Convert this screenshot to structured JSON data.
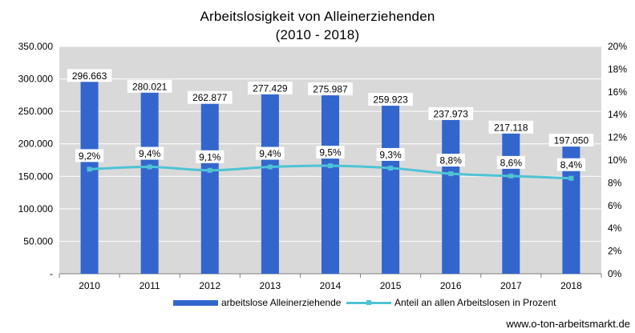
{
  "title_line1": "Arbeitslosigkeit von Alleinerziehenden",
  "title_line2": "(2010 - 2018)",
  "source": "www.o-ton-arbeitsmarkt.de",
  "colors": {
    "bar": "#3366cc",
    "line": "#4fc3d5",
    "plot_bg": "#d9d9d9",
    "grid": "#ffffff"
  },
  "chart_data": {
    "type": "bar+line",
    "categories": [
      "2010",
      "2011",
      "2012",
      "2013",
      "2014",
      "2015",
      "2016",
      "2017",
      "2018"
    ],
    "series": [
      {
        "name": "arbeitslose Alleinerziehende",
        "type": "bar",
        "axis": "left",
        "values": [
          296663,
          280021,
          262877,
          277429,
          275987,
          259923,
          237973,
          217118,
          197050
        ],
        "labels": [
          "296.663",
          "280.021",
          "262.877",
          "277.429",
          "275.987",
          "259.923",
          "237.973",
          "217.118",
          "197.050"
        ]
      },
      {
        "name": "Anteil an allen Arbeitslosen in Prozent",
        "type": "line",
        "axis": "right",
        "values": [
          9.2,
          9.4,
          9.1,
          9.4,
          9.5,
          9.3,
          8.8,
          8.6,
          8.4
        ],
        "labels": [
          "9,2%",
          "9,4%",
          "9,1%",
          "9,4%",
          "9,5%",
          "9,3%",
          "8,8%",
          "8,6%",
          "8,4%"
        ]
      }
    ],
    "y_left": {
      "lim": [
        0,
        350000
      ],
      "ticks": [
        0,
        50000,
        100000,
        150000,
        200000,
        250000,
        300000,
        350000
      ],
      "tick_labels": [
        "-",
        "50.000",
        "100.000",
        "150.000",
        "200.000",
        "250.000",
        "300.000",
        "350.000"
      ]
    },
    "y_right": {
      "lim": [
        0,
        20
      ],
      "ticks": [
        0,
        2,
        4,
        6,
        8,
        10,
        12,
        14,
        16,
        18,
        20
      ],
      "tick_labels": [
        "0%",
        "2%",
        "4%",
        "6%",
        "8%",
        "10%",
        "12%",
        "14%",
        "16%",
        "18%",
        "20%"
      ]
    },
    "grid": true,
    "legend": "bottom"
  }
}
